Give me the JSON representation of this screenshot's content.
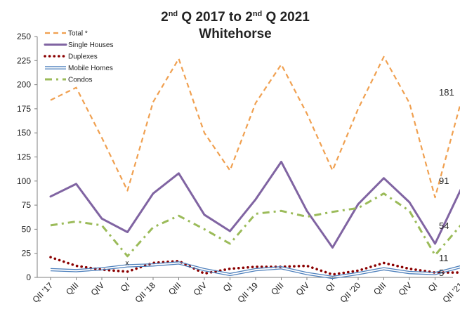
{
  "chart_data": {
    "type": "line",
    "title_line1_pre": "2",
    "title_line1_sup1": "nd",
    "title_line1_mid": " Q 2017 to 2",
    "title_line1_sup2": "nd",
    "title_line1_post": " Q 2021",
    "title_line2": "Whitehorse",
    "ylim": [
      0,
      250
    ],
    "yticks": [
      "0",
      "25",
      "50",
      "75",
      "100",
      "125",
      "150",
      "175",
      "200",
      "225",
      "250"
    ],
    "categories": [
      "QII '17",
      "QIII",
      "QIV",
      "QI",
      "QII '18",
      "QIII",
      "QIV",
      "QI",
      "QII '19",
      "QIII",
      "QIV",
      "QI",
      "QII '20",
      "QIII",
      "QIV",
      "QI",
      "QII '21"
    ],
    "legend_position": "top-left",
    "grid": false,
    "series": [
      {
        "name": "Total *",
        "color": "#F0A050",
        "style": "dashed",
        "values": [
          184,
          197,
          145,
          90,
          182,
          227,
          150,
          111,
          181,
          221,
          170,
          111,
          175,
          229,
          181,
          83,
          181
        ]
      },
      {
        "name": "Single Houses",
        "color": "#8064A2",
        "style": "solid",
        "values": [
          84,
          97,
          61,
          47,
          87,
          108,
          65,
          48,
          81,
          120,
          69,
          31,
          76,
          103,
          78,
          35,
          91
        ]
      },
      {
        "name": "Duplexes",
        "color": "#8B0000",
        "style": "dotted",
        "values": [
          21,
          12,
          8,
          6,
          15,
          17,
          4,
          9,
          11,
          11,
          12,
          3,
          7,
          15,
          9,
          5,
          5
        ]
      },
      {
        "name": "Mobile Homes",
        "color": "#4F81BD",
        "style": "double",
        "values": [
          8,
          7,
          9,
          12,
          13,
          15,
          8,
          3,
          8,
          10,
          4,
          0,
          4,
          9,
          5,
          4,
          11
        ]
      },
      {
        "name": "Condos",
        "color": "#9BBB59",
        "style": "dashdot",
        "values": [
          54,
          58,
          54,
          22,
          52,
          64,
          50,
          35,
          66,
          69,
          63,
          68,
          72,
          87,
          69,
          23,
          54
        ]
      }
    ],
    "end_labels": [
      "181",
      "91",
      "54",
      "11",
      "5"
    ],
    "annotation": "x"
  }
}
